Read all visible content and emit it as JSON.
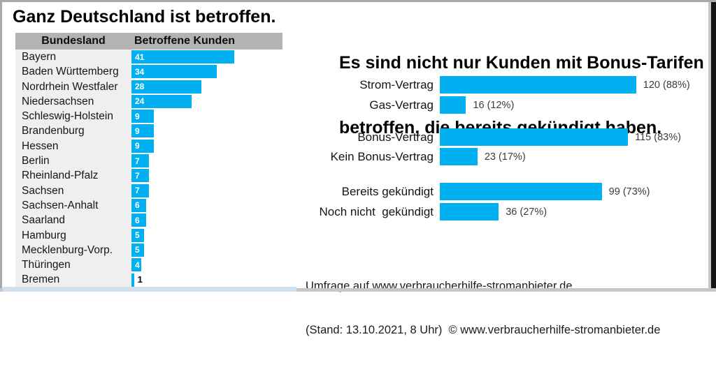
{
  "colors": {
    "bar_cyan": "#00b0f0",
    "header_gray": "#b3b3b3",
    "row_gray": "#efefef"
  },
  "left_panel": {
    "title": "Ganz Deutschland ist betroffen.",
    "table": {
      "headers": [
        "Bundesland",
        "Betroffene Kunden"
      ],
      "rows": [
        {
          "label": "Bayern",
          "value": 41
        },
        {
          "label": "Baden Württemberg",
          "value": 34
        },
        {
          "label": "Nordrhein Westfaler",
          "value": 28
        },
        {
          "label": "Niedersachsen",
          "value": 24
        },
        {
          "label": "Schleswig-Holstein",
          "value": 9
        },
        {
          "label": "Brandenburg",
          "value": 9
        },
        {
          "label": "Hessen",
          "value": 9
        },
        {
          "label": "Berlin",
          "value": 7
        },
        {
          "label": "Rheinland-Pfalz",
          "value": 7
        },
        {
          "label": "Sachsen",
          "value": 7
        },
        {
          "label": "Sachsen-Anhalt",
          "value": 6
        },
        {
          "label": "Saarland",
          "value": 6
        },
        {
          "label": "Hamburg",
          "value": 5
        },
        {
          "label": "Mecklenburg-Vorp.",
          "value": 5
        },
        {
          "label": "Thüringen",
          "value": 4
        },
        {
          "label": "Bremen",
          "value": 1
        }
      ]
    }
  },
  "right_panel": {
    "title_line1": "Es sind nicht nur Kunden mit Bonus-Tarifen",
    "title_line2": "betroffen, die bereits gekündigt haben.",
    "rows": [
      {
        "label": "Strom-Vertrag",
        "value": 120,
        "value_label": "120 (88%)"
      },
      {
        "label": "Gas-Vertrag",
        "value": 16,
        "value_label": "16 (12%)"
      },
      {
        "label": "Bonus-Vertrag",
        "value": 115,
        "value_label": "115 (83%)"
      },
      {
        "label": "Kein Bonus-Vertrag",
        "value": 23,
        "value_label": "23 (17%)"
      },
      {
        "label": "Bereits gekündigt",
        "value": 99,
        "value_label": "99 (73%)"
      },
      {
        "label": "Noch nicht  gekündigt",
        "value": 36,
        "value_label": "36 (27%)"
      }
    ],
    "footer_line1": "Umfrage auf www.verbraucherhilfe-stromanbieter.de",
    "footer_line2": "(Stand: 13.10.2021, 8 Uhr)  © www.verbraucherhilfe-stromanbieter.de"
  },
  "chart_data": [
    {
      "type": "bar",
      "orientation": "horizontal",
      "title": "Ganz Deutschland ist betroffen.",
      "xlabel": "Betroffene Kunden",
      "ylabel": "Bundesland",
      "categories": [
        "Bayern",
        "Baden Württemberg",
        "Nordrhein Westfaler",
        "Niedersachsen",
        "Schleswig-Holstein",
        "Brandenburg",
        "Hessen",
        "Berlin",
        "Rheinland-Pfalz",
        "Sachsen",
        "Sachsen-Anhalt",
        "Saarland",
        "Hamburg",
        "Mecklenburg-Vorp.",
        "Thüringen",
        "Bremen"
      ],
      "values": [
        41,
        34,
        28,
        24,
        9,
        9,
        9,
        7,
        7,
        7,
        6,
        6,
        5,
        5,
        4,
        1
      ],
      "xlim": [
        0,
        45
      ],
      "grid": false,
      "legend": false,
      "bar_color": "#00b0f0"
    },
    {
      "type": "bar",
      "orientation": "horizontal",
      "title": "Es sind nicht nur Kunden mit Bonus-Tarifen betroffen, die bereits gekündigt haben.",
      "categories": [
        "Strom-Vertrag",
        "Gas-Vertrag",
        "Bonus-Vertrag",
        "Kein Bonus-Vertrag",
        "Bereits gekündigt",
        "Noch nicht  gekündigt"
      ],
      "values": [
        120,
        16,
        115,
        23,
        99,
        36
      ],
      "data_labels": [
        "120 (88%)",
        "16 (12%)",
        "115 (83%)",
        "23 (17%)",
        "99 (73%)",
        "36 (27%)"
      ],
      "groups": [
        [
          "Strom-Vertrag",
          "Gas-Vertrag"
        ],
        [
          "Bonus-Vertrag",
          "Kein Bonus-Vertrag"
        ],
        [
          "Bereits gekündigt",
          "Noch nicht  gekündigt"
        ]
      ],
      "xlim": [
        0,
        135
      ],
      "grid": false,
      "legend": false,
      "bar_color": "#00b0f0",
      "annotations": [
        "Umfrage auf www.verbraucherhilfe-stromanbieter.de",
        "(Stand: 13.10.2021, 8 Uhr)  © www.verbraucherhilfe-stromanbieter.de"
      ]
    }
  ]
}
